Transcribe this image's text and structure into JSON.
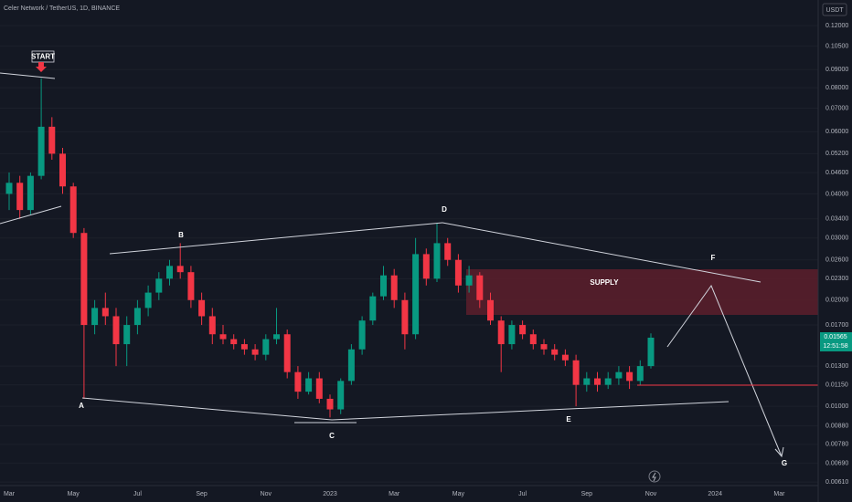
{
  "header": "Celer Network / TetherUS, 1D, BINANCE",
  "price_tag": {
    "price": "0.01565",
    "countdown": "12:51:58"
  },
  "chart_data": {
    "type": "candlestick",
    "currency": "USDT",
    "log_scale": true,
    "up_color": "#089981",
    "down_color": "#f23645",
    "annotations": {
      "start": "START",
      "a": "A",
      "b": "B",
      "c": "C",
      "d": "D",
      "e": "E",
      "f": "F",
      "g": "G",
      "supply": "SUPPLY"
    },
    "categories": [
      "Mar",
      null,
      null,
      null,
      null,
      null,
      "May",
      null,
      null,
      null,
      null,
      null,
      "Jul",
      null,
      null,
      null,
      null,
      null,
      "Sep",
      null,
      null,
      null,
      null,
      null,
      "Nov",
      null,
      null,
      null,
      null,
      null,
      "2023",
      null,
      null,
      null,
      null,
      null,
      "Mar",
      null,
      null,
      null,
      null,
      null,
      "May",
      null,
      null,
      null,
      null,
      null,
      "Jul",
      null,
      null,
      null,
      null,
      null,
      "Sep",
      null,
      null,
      null,
      null,
      null,
      "Nov",
      null,
      null,
      null,
      null,
      null,
      "2024",
      null,
      null,
      null,
      null,
      null,
      "Mar"
    ],
    "open": [
      0.04,
      0.043,
      0.036,
      0.045,
      0.062,
      0.052,
      0.042,
      0.031,
      0.017,
      0.019,
      0.018,
      0.015,
      0.017,
      0.019,
      0.021,
      0.023,
      0.025,
      0.024,
      0.02,
      0.018,
      0.016,
      0.0155,
      0.015,
      0.0145,
      0.014,
      0.0155,
      0.016,
      0.0125,
      0.011,
      0.012,
      0.0105,
      0.0098,
      0.0118,
      0.0145,
      0.0175,
      0.0205,
      0.0235,
      0.02,
      0.016,
      0.027,
      0.023,
      0.029,
      0.026,
      0.022,
      0.0235,
      0.02,
      0.0175,
      0.015,
      0.017,
      0.016,
      0.015,
      0.0145,
      0.014,
      0.0135,
      0.0115,
      0.012,
      0.0115,
      0.012,
      0.0125,
      0.0118,
      0.013,
      null,
      null,
      null,
      null,
      null,
      null,
      null,
      null,
      null,
      null,
      null,
      null
    ],
    "high": [
      0.046,
      0.045,
      0.046,
      0.085,
      0.066,
      0.054,
      0.043,
      0.032,
      0.02,
      0.021,
      0.019,
      0.018,
      0.02,
      0.022,
      0.024,
      0.026,
      0.029,
      0.025,
      0.021,
      0.019,
      0.017,
      0.016,
      0.0155,
      0.015,
      0.016,
      0.019,
      0.0165,
      0.013,
      0.0125,
      0.0125,
      0.0108,
      0.012,
      0.015,
      0.018,
      0.021,
      0.025,
      0.0245,
      0.021,
      0.03,
      0.028,
      0.033,
      0.03,
      0.027,
      0.025,
      0.024,
      0.021,
      0.018,
      0.0175,
      0.0175,
      0.0165,
      0.0155,
      0.015,
      0.0145,
      0.014,
      0.0125,
      0.0125,
      0.0125,
      0.013,
      0.013,
      0.0135,
      0.0161,
      null,
      null,
      null,
      null,
      null,
      null,
      null,
      null,
      null,
      null,
      null,
      null
    ],
    "low": [
      0.036,
      0.034,
      0.035,
      0.044,
      0.05,
      0.04,
      0.03,
      0.0105,
      0.016,
      0.017,
      0.013,
      0.013,
      0.016,
      0.018,
      0.02,
      0.022,
      0.023,
      0.019,
      0.017,
      0.015,
      0.015,
      0.0145,
      0.014,
      0.0135,
      0.0135,
      0.015,
      0.012,
      0.0105,
      0.0108,
      0.0102,
      0.0093,
      0.0095,
      0.0115,
      0.014,
      0.017,
      0.02,
      0.019,
      0.0145,
      0.0155,
      0.022,
      0.0225,
      0.025,
      0.021,
      0.021,
      0.019,
      0.017,
      0.0125,
      0.0145,
      0.0155,
      0.0145,
      0.014,
      0.0135,
      0.013,
      0.01,
      0.011,
      0.011,
      0.0112,
      0.0115,
      0.0112,
      0.0115,
      0.0128,
      null,
      null,
      null,
      null,
      null,
      null,
      null,
      null,
      null,
      null,
      null,
      null
    ],
    "close": [
      0.043,
      0.036,
      0.045,
      0.062,
      0.052,
      0.042,
      0.031,
      0.017,
      0.019,
      0.018,
      0.015,
      0.017,
      0.019,
      0.021,
      0.023,
      0.025,
      0.024,
      0.02,
      0.018,
      0.016,
      0.0155,
      0.015,
      0.0145,
      0.014,
      0.0155,
      0.016,
      0.0125,
      0.011,
      0.012,
      0.0105,
      0.0098,
      0.0118,
      0.0145,
      0.0175,
      0.0205,
      0.0235,
      0.02,
      0.016,
      0.027,
      0.023,
      0.029,
      0.026,
      0.022,
      0.0235,
      0.02,
      0.0175,
      0.015,
      0.017,
      0.016,
      0.015,
      0.0145,
      0.014,
      0.0135,
      0.0115,
      0.012,
      0.0115,
      0.012,
      0.0125,
      0.0118,
      0.013,
      0.01565,
      null,
      null,
      null,
      null,
      null,
      null,
      null,
      null,
      null,
      null,
      null,
      null
    ],
    "ylim": [
      0.00596,
      0.1418
    ],
    "yticks": [
      {
        "value": 0.12,
        "label": "0.12000"
      },
      {
        "value": 0.105,
        "label": "0.10500"
      },
      {
        "value": 0.09,
        "label": "0.09000"
      },
      {
        "value": 0.08,
        "label": "0.08000"
      },
      {
        "value": 0.07,
        "label": "0.07000"
      },
      {
        "value": 0.06,
        "label": "0.06000"
      },
      {
        "value": 0.052,
        "label": "0.05200"
      },
      {
        "value": 0.046,
        "label": "0.04600"
      },
      {
        "value": 0.04,
        "label": "0.04000"
      },
      {
        "value": 0.034,
        "label": "0.03400"
      },
      {
        "value": 0.03,
        "label": "0.03000"
      },
      {
        "value": 0.026,
        "label": "0.02600"
      },
      {
        "value": 0.023,
        "label": "0.02300"
      },
      {
        "value": 0.02,
        "label": "0.02000"
      },
      {
        "value": 0.017,
        "label": "0.01700"
      },
      {
        "value": 0.013,
        "label": "0.01300"
      },
      {
        "value": 0.0115,
        "label": "0.01150"
      },
      {
        "value": 0.01,
        "label": "0.01000"
      },
      {
        "value": 0.0088,
        "label": "0.00880"
      },
      {
        "value": 0.0078,
        "label": "0.00780"
      },
      {
        "value": 0.0069,
        "label": "0.00690"
      },
      {
        "value": 0.0061,
        "label": "0.00610"
      }
    ]
  }
}
